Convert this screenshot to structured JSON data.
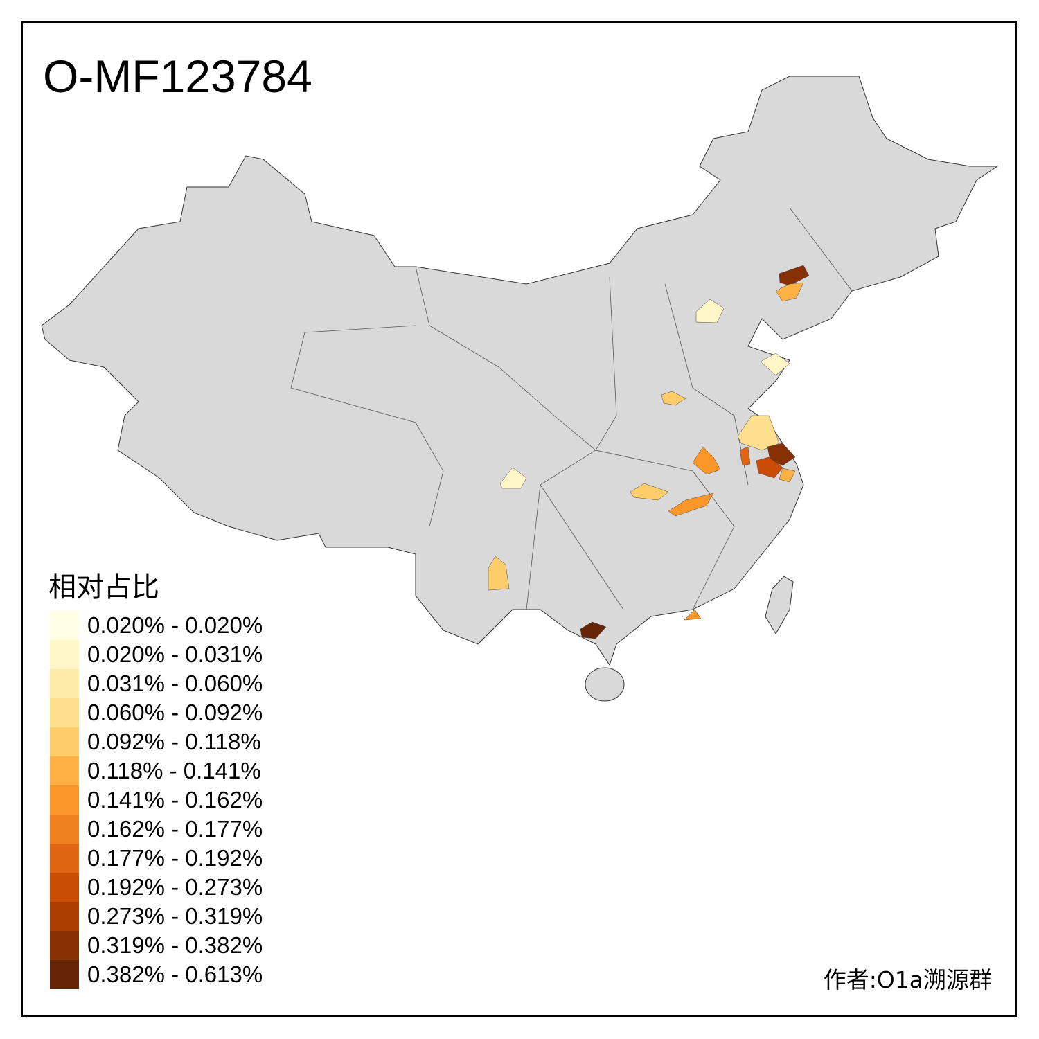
{
  "title": "O-MF123784",
  "legend": {
    "title": "相对占比",
    "bins": [
      {
        "label": "0.020% - 0.020%",
        "color": "#FFFFE5"
      },
      {
        "label": "0.020% - 0.031%",
        "color": "#FFF7C8"
      },
      {
        "label": "0.031% - 0.060%",
        "color": "#FEEBA9"
      },
      {
        "label": "0.060% - 0.092%",
        "color": "#FEDF8E"
      },
      {
        "label": "0.092% - 0.118%",
        "color": "#FECD69"
      },
      {
        "label": "0.118% - 0.141%",
        "color": "#FEB144"
      },
      {
        "label": "0.141% - 0.162%",
        "color": "#FB9729"
      },
      {
        "label": "0.162% - 0.177%",
        "color": "#F07F1F"
      },
      {
        "label": "0.177% - 0.192%",
        "color": "#E06513"
      },
      {
        "label": "0.192% - 0.273%",
        "color": "#CB4C05"
      },
      {
        "label": "0.273% - 0.319%",
        "color": "#AB3D03"
      },
      {
        "label": "0.319% - 0.382%",
        "color": "#873004"
      },
      {
        "label": "0.382% - 0.613%",
        "color": "#662506"
      }
    ]
  },
  "base_color": "#D9D9D9",
  "credit": "作者:O1a溯源群"
}
